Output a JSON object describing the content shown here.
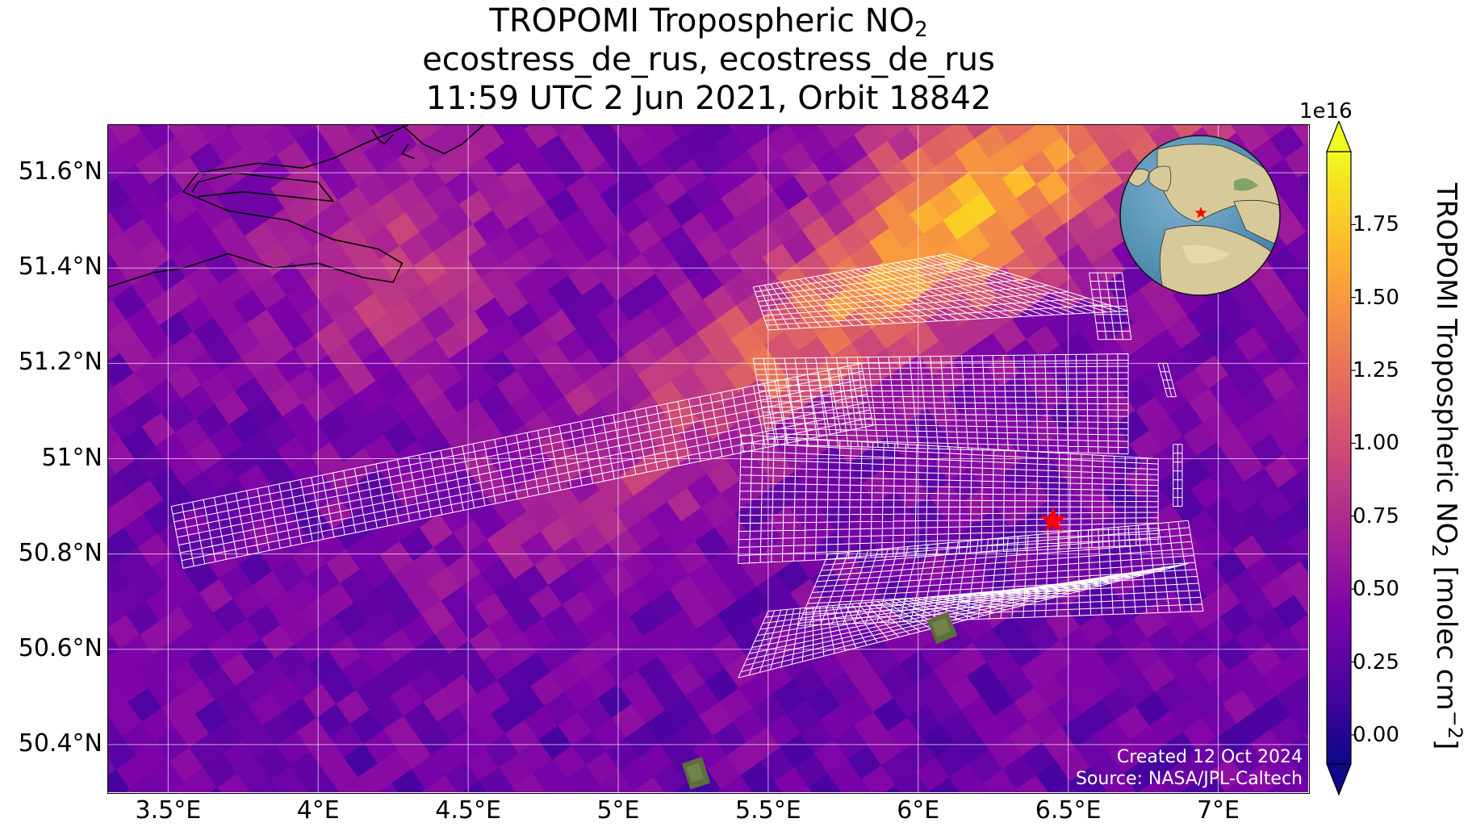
{
  "title": {
    "line1_prefix": "TROPOMI Tropospheric NO",
    "line1_sub": "2",
    "line2": "ecostress_de_rus, ecostress_de_rus",
    "line3": "11:59 UTC 2 Jun 2021, Orbit 18842"
  },
  "map": {
    "lon_range": [
      3.3,
      7.3
    ],
    "lat_range": [
      50.3,
      51.7
    ],
    "lon_ticks": [
      {
        "value": 3.5,
        "label": "3.5°E"
      },
      {
        "value": 4.0,
        "label": "4°E"
      },
      {
        "value": 4.5,
        "label": "4.5°E"
      },
      {
        "value": 5.0,
        "label": "5°E"
      },
      {
        "value": 5.5,
        "label": "5.5°E"
      },
      {
        "value": 6.0,
        "label": "6°E"
      },
      {
        "value": 6.5,
        "label": "6.5°E"
      },
      {
        "value": 7.0,
        "label": "7°E"
      }
    ],
    "lat_ticks": [
      {
        "value": 50.4,
        "label": "50.4°N"
      },
      {
        "value": 50.6,
        "label": "50.6°N"
      },
      {
        "value": 50.8,
        "label": "50.8°N"
      },
      {
        "value": 51.0,
        "label": "51°N"
      },
      {
        "value": 51.2,
        "label": "51.2°N"
      },
      {
        "value": 51.4,
        "label": "51.4°N"
      },
      {
        "value": 51.6,
        "label": "51.6°N"
      }
    ],
    "site_marker": {
      "lon": 6.45,
      "lat": 50.87,
      "color": "#ff0000",
      "symbol": "star"
    },
    "grid": true,
    "coastline_color": "#000000",
    "footprint_outline_color": "#ffffff",
    "credits_line1": "Created 12 Oct 2024",
    "credits_line2": "Source: NASA/JPL-Caltech",
    "inset_globe": {
      "marker_color": "#ff0000"
    }
  },
  "colorbar": {
    "colormap": "plasma",
    "range": [
      -0.1,
      2.0
    ],
    "extend": "both",
    "multiplier": "1e16",
    "label_prefix": "TROPOMI Tropospheric NO",
    "label_sub": "2",
    "label_mid": " [molec cm",
    "label_sup": "−2",
    "label_end": "]",
    "ticks": [
      "0.00",
      "0.25",
      "0.50",
      "0.75",
      "1.00",
      "1.25",
      "1.50",
      "1.75"
    ]
  }
}
